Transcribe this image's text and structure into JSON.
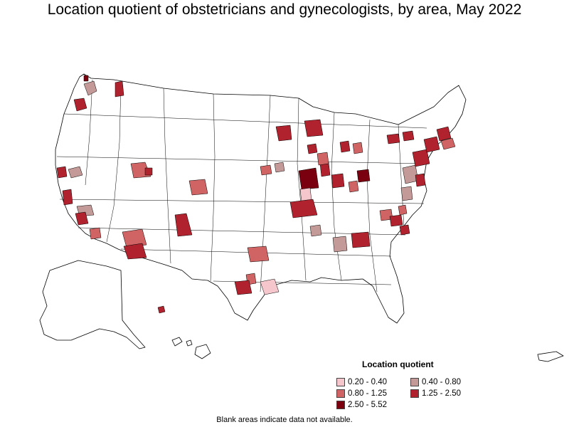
{
  "title": "Location quotient of obstetricians and gynecologists, by area, May 2022",
  "legend": {
    "title": "Location quotient",
    "items": [
      {
        "label": "0.20 - 0.40",
        "color": "#f5c6cb"
      },
      {
        "label": "0.40 - 0.80",
        "color": "#c49a98"
      },
      {
        "label": "0.80 - 1.25",
        "color": "#d06464"
      },
      {
        "label": "1.25 - 2.50",
        "color": "#b0222e"
      },
      {
        "label": "2.50 - 5.52",
        "color": "#7a0010"
      }
    ]
  },
  "footnote": "Blank areas indicate data not available."
}
